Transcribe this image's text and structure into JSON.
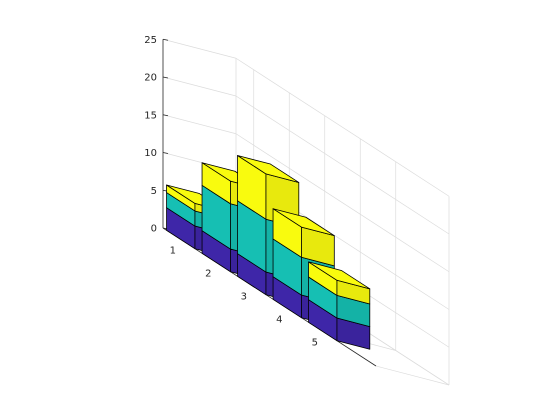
{
  "chart_data": {
    "type": "bar",
    "subtype": "3d-stacked",
    "title": "",
    "xlabel": "",
    "ylabel": "",
    "zlabel": "",
    "categories": [
      "1",
      "2",
      "3",
      "4",
      "5"
    ],
    "series": [
      {
        "color": "#3e26a8",
        "values": [
          3,
          3,
          3,
          3,
          3
        ]
      },
      {
        "color": "#16bfb3",
        "values": [
          2,
          6,
          7,
          5,
          3
        ]
      },
      {
        "color": "#f9fb0e",
        "values": [
          1,
          3,
          6,
          4,
          2
        ]
      }
    ],
    "zlim": [
      0,
      25
    ],
    "zticks": [
      "0",
      "5",
      "10",
      "15",
      "20",
      "25"
    ],
    "grid": true,
    "view": "3d"
  }
}
